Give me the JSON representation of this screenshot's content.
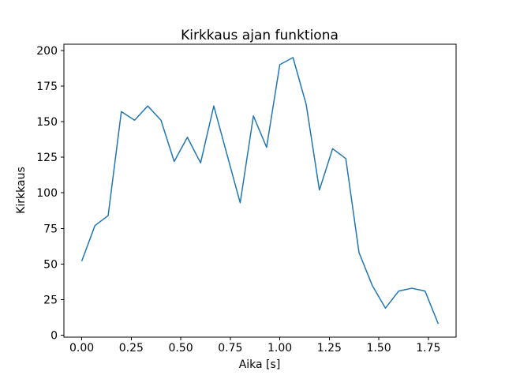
{
  "chart_data": {
    "type": "line",
    "title": "Kirkkaus ajan funktiona",
    "xlabel": "Aika [s]",
    "ylabel": "Kirkkaus",
    "line_color": "#1f77b4",
    "background_color": "#ffffff",
    "grid": false,
    "legend_position": "none",
    "x": [
      0.0,
      0.0667,
      0.1333,
      0.2,
      0.2667,
      0.3333,
      0.4,
      0.4667,
      0.5333,
      0.6,
      0.6667,
      0.7333,
      0.8,
      0.8667,
      0.9333,
      1.0,
      1.0667,
      1.1333,
      1.2,
      1.2667,
      1.3333,
      1.4,
      1.4667,
      1.5333,
      1.6,
      1.6667,
      1.7333,
      1.8
    ],
    "y": [
      52,
      77,
      84,
      157,
      151,
      161,
      151,
      122,
      139,
      121,
      161,
      127,
      93,
      154,
      132,
      190,
      195,
      162,
      102,
      131,
      124,
      58,
      35,
      19,
      31,
      33,
      31,
      8
    ],
    "xlim": [
      -0.09,
      1.89
    ],
    "ylim": [
      -1.35,
      204.35
    ],
    "xticks": [
      0.0,
      0.25,
      0.5,
      0.75,
      1.0,
      1.25,
      1.5,
      1.75
    ],
    "xtick_labels": [
      "0.00",
      "0.25",
      "0.50",
      "0.75",
      "1.00",
      "1.25",
      "1.50",
      "1.75"
    ],
    "yticks": [
      0,
      25,
      50,
      75,
      100,
      125,
      150,
      175,
      200
    ],
    "ytick_labels": [
      "0",
      "25",
      "50",
      "75",
      "100",
      "125",
      "150",
      "175",
      "200"
    ]
  }
}
